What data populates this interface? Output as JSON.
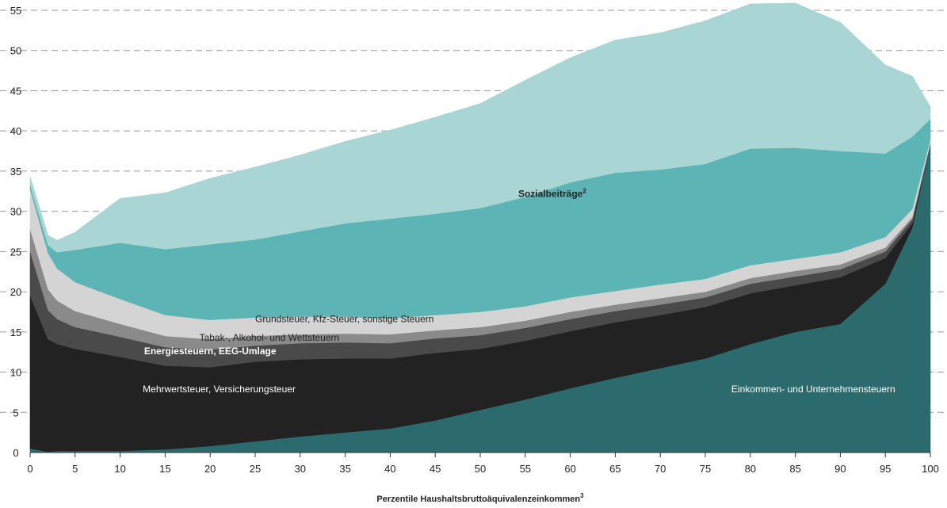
{
  "chart_data": {
    "type": "area",
    "stacked": true,
    "xlabel": "Perzentile Haushaltsbruttoäquivalenzeinkommen",
    "xlabel_sup": "3",
    "ylabel": "",
    "xlim": [
      0,
      100
    ],
    "ylim": [
      0,
      55
    ],
    "grid": true,
    "x_ticks": [
      0,
      5,
      10,
      15,
      20,
      25,
      30,
      35,
      40,
      45,
      50,
      55,
      60,
      65,
      70,
      75,
      80,
      85,
      90,
      95,
      100
    ],
    "y_ticks": [
      0,
      5,
      10,
      15,
      20,
      25,
      30,
      35,
      40,
      45,
      50,
      55
    ],
    "x": [
      0,
      2,
      3,
      5,
      10,
      15,
      20,
      25,
      30,
      35,
      40,
      45,
      50,
      55,
      60,
      65,
      70,
      75,
      80,
      85,
      90,
      95,
      98,
      100
    ],
    "series": [
      {
        "key": "einkommen",
        "name": "Einkommen- und Unternehmensteuern",
        "color": "#2b6b6e",
        "text_color": "#ffffff",
        "values": [
          0.5,
          0.1,
          0.2,
          0.2,
          0.2,
          0.4,
          0.8,
          1.4,
          2.0,
          2.5,
          3.0,
          4.0,
          5.3,
          6.6,
          8.0,
          9.3,
          10.5,
          11.7,
          13.5,
          15.0,
          16.0,
          21.0,
          28.0,
          38.5
        ],
        "labels": [
          {
            "text": "Einkommen- und Unternehmensteuern",
            "x": 87,
            "y": 7.5,
            "anchor": "middle",
            "bold": false
          }
        ]
      },
      {
        "key": "mwst",
        "name": "Mehrwertsteuer, Versicherungsteuer",
        "color": "#222222",
        "text_color": "#ffffff",
        "values": [
          19.0,
          14.0,
          13.3,
          12.7,
          11.7,
          10.4,
          9.8,
          9.9,
          9.6,
          9.2,
          8.7,
          8.4,
          7.6,
          7.3,
          7.1,
          6.9,
          6.6,
          6.4,
          6.3,
          5.8,
          5.8,
          3.2,
          0.5,
          0.0
        ],
        "labels": [
          {
            "text": "Mehrwertsteuer, Versicherungsteuer",
            "x": 21,
            "y": 7.5,
            "anchor": "middle",
            "bold": false
          }
        ]
      },
      {
        "key": "energie",
        "name": "Energiesteuern, EEG-Umlage",
        "color": "#4a4a4a",
        "text_color": "#ffffff",
        "values": [
          5.5,
          3.6,
          3.1,
          2.7,
          2.5,
          2.3,
          2.2,
          2.0,
          2.0,
          2.0,
          1.9,
          1.8,
          1.7,
          1.6,
          1.5,
          1.4,
          1.3,
          1.2,
          1.2,
          1.1,
          1.0,
          0.8,
          0.5,
          0.0
        ],
        "labels": [
          {
            "text": "Energiesteuern, EEG-Umlage",
            "x": 20,
            "y": 12.2,
            "anchor": "middle",
            "bold": true
          }
        ]
      },
      {
        "key": "tabak",
        "name": "Tabak-, Alkohol- und Wettsteuern",
        "color": "#8a8a8a",
        "text_color": "#222222",
        "values": [
          2.8,
          2.6,
          2.3,
          2.0,
          1.6,
          1.4,
          1.3,
          1.2,
          1.1,
          1.1,
          1.1,
          1.0,
          1.0,
          0.9,
          0.9,
          0.8,
          0.8,
          0.7,
          0.7,
          0.7,
          0.6,
          0.5,
          0.3,
          0.0
        ],
        "labels": [
          {
            "text": "Tabak-, Alkohol- und Wettsteuern",
            "x": 18.8,
            "y": 13.9,
            "anchor": "start",
            "bold": false
          }
        ]
      },
      {
        "key": "grund",
        "name": "Grundsteuer, Kfz-Steuer, sonstige Steuern",
        "color": "#d4d4d4",
        "text_color": "#222222",
        "values": [
          5.0,
          4.5,
          4.0,
          3.6,
          3.1,
          2.6,
          2.4,
          2.3,
          2.2,
          2.1,
          2.0,
          1.9,
          1.9,
          1.8,
          1.8,
          1.7,
          1.7,
          1.6,
          1.6,
          1.5,
          1.5,
          1.3,
          1.0,
          0.5
        ],
        "labels": [
          {
            "text": "Grundsteuer, Kfz-Steuer, sonstige Steuern",
            "x": 25,
            "y": 16.2,
            "anchor": "start",
            "bold": false
          }
        ]
      },
      {
        "key": "sozialbeitraege",
        "name": "Sozialbeiträge",
        "name_sup": "2",
        "color": "#5cb5b4",
        "text_color": "#222222",
        "values": [
          0.5,
          1.0,
          2.0,
          4.0,
          7.0,
          8.2,
          9.4,
          9.7,
          10.6,
          11.6,
          12.4,
          12.6,
          12.9,
          13.6,
          14.3,
          14.7,
          14.3,
          14.3,
          14.5,
          13.8,
          12.6,
          10.4,
          9.0,
          2.5
        ],
        "labels": [
          {
            "text": "Sozialbeiträge",
            "sup": "2",
            "x": 58,
            "y": 31.8,
            "anchor": "middle",
            "bold": true
          }
        ]
      },
      {
        "key": "sozial_hell",
        "name": "Sozialbeiträge",
        "color": "#a9d6d5",
        "text_color": "#222222",
        "values": [
          1.0,
          1.2,
          1.5,
          2.2,
          5.5,
          7.0,
          8.2,
          9.0,
          9.5,
          10.2,
          11.0,
          12.0,
          13.0,
          14.5,
          15.5,
          16.5,
          17.0,
          17.8,
          18.0,
          18.0,
          16.0,
          11.0,
          7.5,
          1.5
        ],
        "labels": []
      }
    ]
  }
}
